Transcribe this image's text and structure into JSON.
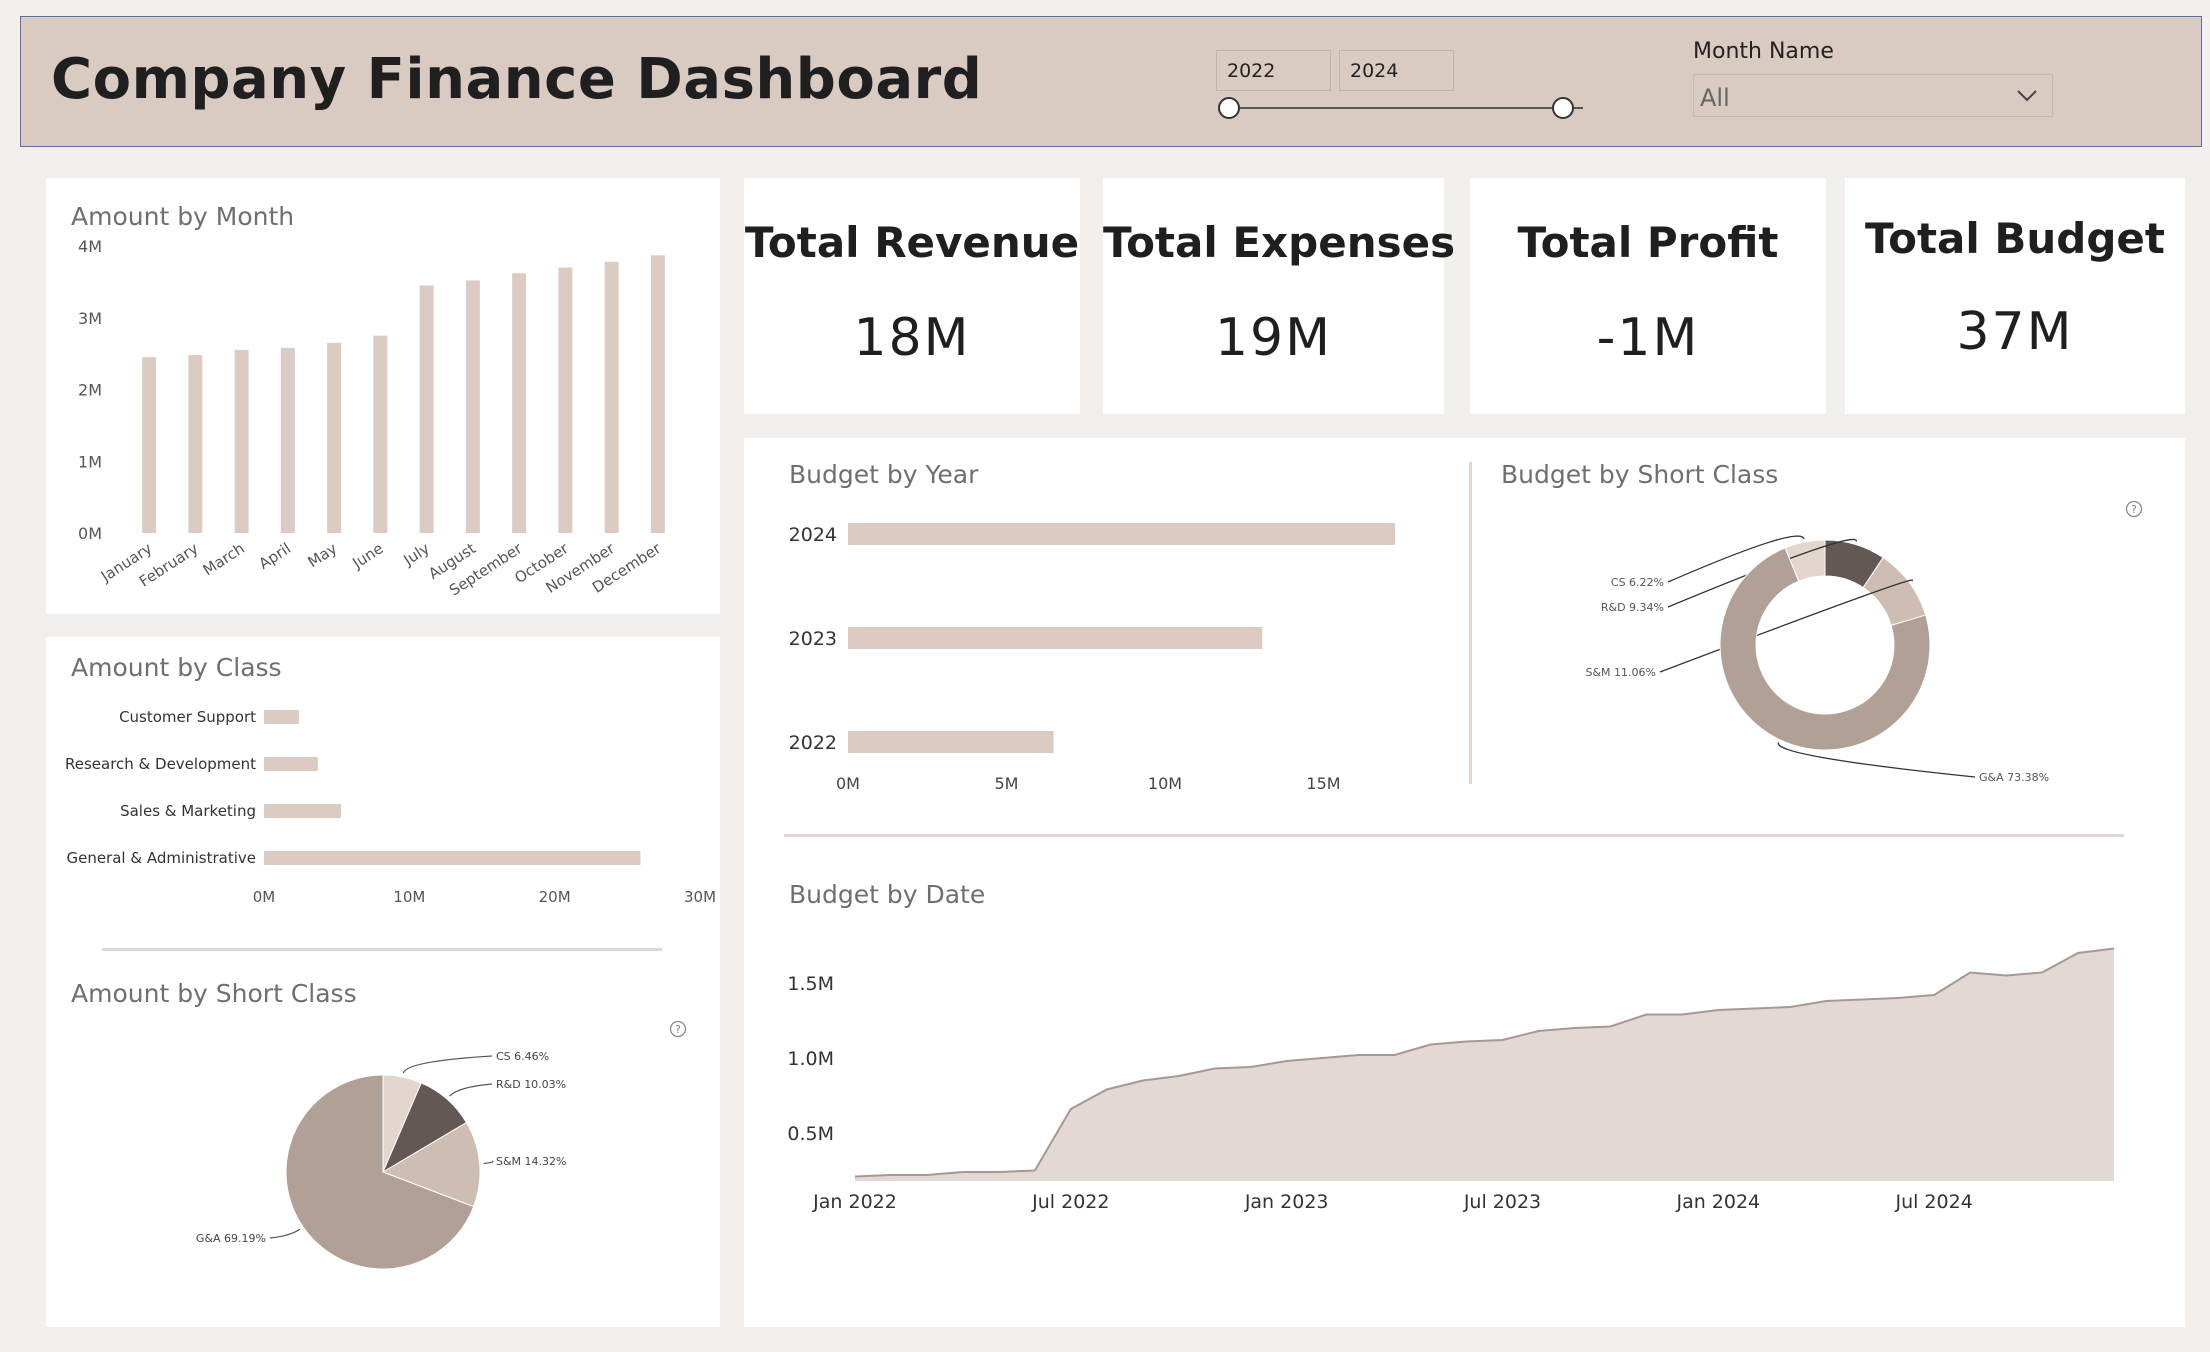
{
  "header": {
    "title": "Company Finance Dashboard",
    "year_range": {
      "start": "2022",
      "end": "2024"
    },
    "month_filter": {
      "label": "Month Name",
      "value": "All"
    }
  },
  "kpis": [
    {
      "title": "Total Revenue",
      "value": "18M"
    },
    {
      "title": "Total Expenses",
      "value": "19M"
    },
    {
      "title": "Total Profit",
      "value": "-1M"
    },
    {
      "title": "Total Budget",
      "value": "37M"
    }
  ],
  "colors": {
    "bar": "#dccbc2",
    "donut_main": "#b1a096",
    "accent_dark": "#635853",
    "light": "#cfbcb2",
    "area_fill": "#e2d8d4",
    "area_line": "#a89893"
  },
  "chart_data": [
    {
      "id": "amount_by_month",
      "type": "bar",
      "title": "Amount by Month",
      "categories": [
        "January",
        "February",
        "March",
        "April",
        "May",
        "June",
        "July",
        "August",
        "September",
        "October",
        "November",
        "December"
      ],
      "values": [
        2.45,
        2.48,
        2.55,
        2.58,
        2.65,
        2.75,
        3.45,
        3.52,
        3.62,
        3.7,
        3.78,
        3.87
      ],
      "y_ticks": [
        "0M",
        "1M",
        "2M",
        "3M",
        "4M"
      ],
      "ylim": [
        0,
        4
      ],
      "unit": "M"
    },
    {
      "id": "amount_by_class",
      "type": "bar",
      "orientation": "horizontal",
      "title": "Amount by Class",
      "categories": [
        "Customer Support",
        "Research & Development",
        "Sales & Marketing",
        "General & Administrative"
      ],
      "values": [
        2.4,
        3.7,
        5.3,
        25.9
      ],
      "x_ticks": [
        "0M",
        "10M",
        "20M",
        "30M"
      ],
      "xlim": [
        0,
        30
      ],
      "unit": "M"
    },
    {
      "id": "amount_by_short_class",
      "type": "pie",
      "title": "Amount by Short Class",
      "slices": [
        {
          "label": "CS 6.46%",
          "value": 6.46
        },
        {
          "label": "R&D 10.03%",
          "value": 10.03
        },
        {
          "label": "S&M 14.32%",
          "value": 14.32
        },
        {
          "label": "G&A 69.19%",
          "value": 69.19
        }
      ]
    },
    {
      "id": "budget_by_year",
      "type": "bar",
      "orientation": "horizontal",
      "title": "Budget by Year",
      "categories": [
        "2024",
        "2023",
        "2022"
      ],
      "values": [
        17.3,
        13.1,
        6.5
      ],
      "x_ticks": [
        "0M",
        "5M",
        "10M",
        "15M"
      ],
      "xlim": [
        0,
        17.3
      ],
      "unit": "M"
    },
    {
      "id": "budget_by_short_class",
      "type": "pie",
      "donut": true,
      "title": "Budget by Short Class",
      "slices": [
        {
          "label": "CS 6.22%",
          "value": 6.22
        },
        {
          "label": "R&D 9.34%",
          "value": 9.34
        },
        {
          "label": "S&M 11.06%",
          "value": 11.06
        },
        {
          "label": "G&A 73.38%",
          "value": 73.38
        }
      ]
    },
    {
      "id": "budget_by_date",
      "type": "area",
      "title": "Budget by Date",
      "x": [
        "2022-01",
        "2022-02",
        "2022-03",
        "2022-04",
        "2022-05",
        "2022-06",
        "2022-07",
        "2022-08",
        "2022-09",
        "2022-10",
        "2022-11",
        "2022-12",
        "2023-01",
        "2023-02",
        "2023-03",
        "2023-04",
        "2023-05",
        "2023-06",
        "2023-07",
        "2023-08",
        "2023-09",
        "2023-10",
        "2023-11",
        "2023-12",
        "2024-01",
        "2024-02",
        "2024-03",
        "2024-04",
        "2024-05",
        "2024-06",
        "2024-07",
        "2024-08",
        "2024-09",
        "2024-10",
        "2024-11",
        "2024-12"
      ],
      "values": [
        0.21,
        0.22,
        0.22,
        0.24,
        0.24,
        0.25,
        0.66,
        0.79,
        0.85,
        0.88,
        0.93,
        0.94,
        0.98,
        1.0,
        1.02,
        1.02,
        1.09,
        1.11,
        1.12,
        1.18,
        1.2,
        1.21,
        1.29,
        1.29,
        1.32,
        1.33,
        1.34,
        1.38,
        1.39,
        1.4,
        1.42,
        1.57,
        1.55,
        1.57,
        1.7,
        1.73
      ],
      "x_ticks": [
        "Jan 2022",
        "Jul 2022",
        "Jan 2023",
        "Jul 2023",
        "Jan 2024",
        "Jul 2024"
      ],
      "y_ticks": [
        "0.5M",
        "1.0M",
        "1.5M"
      ],
      "ylim": [
        0.18,
        1.8
      ],
      "unit": "M"
    }
  ]
}
